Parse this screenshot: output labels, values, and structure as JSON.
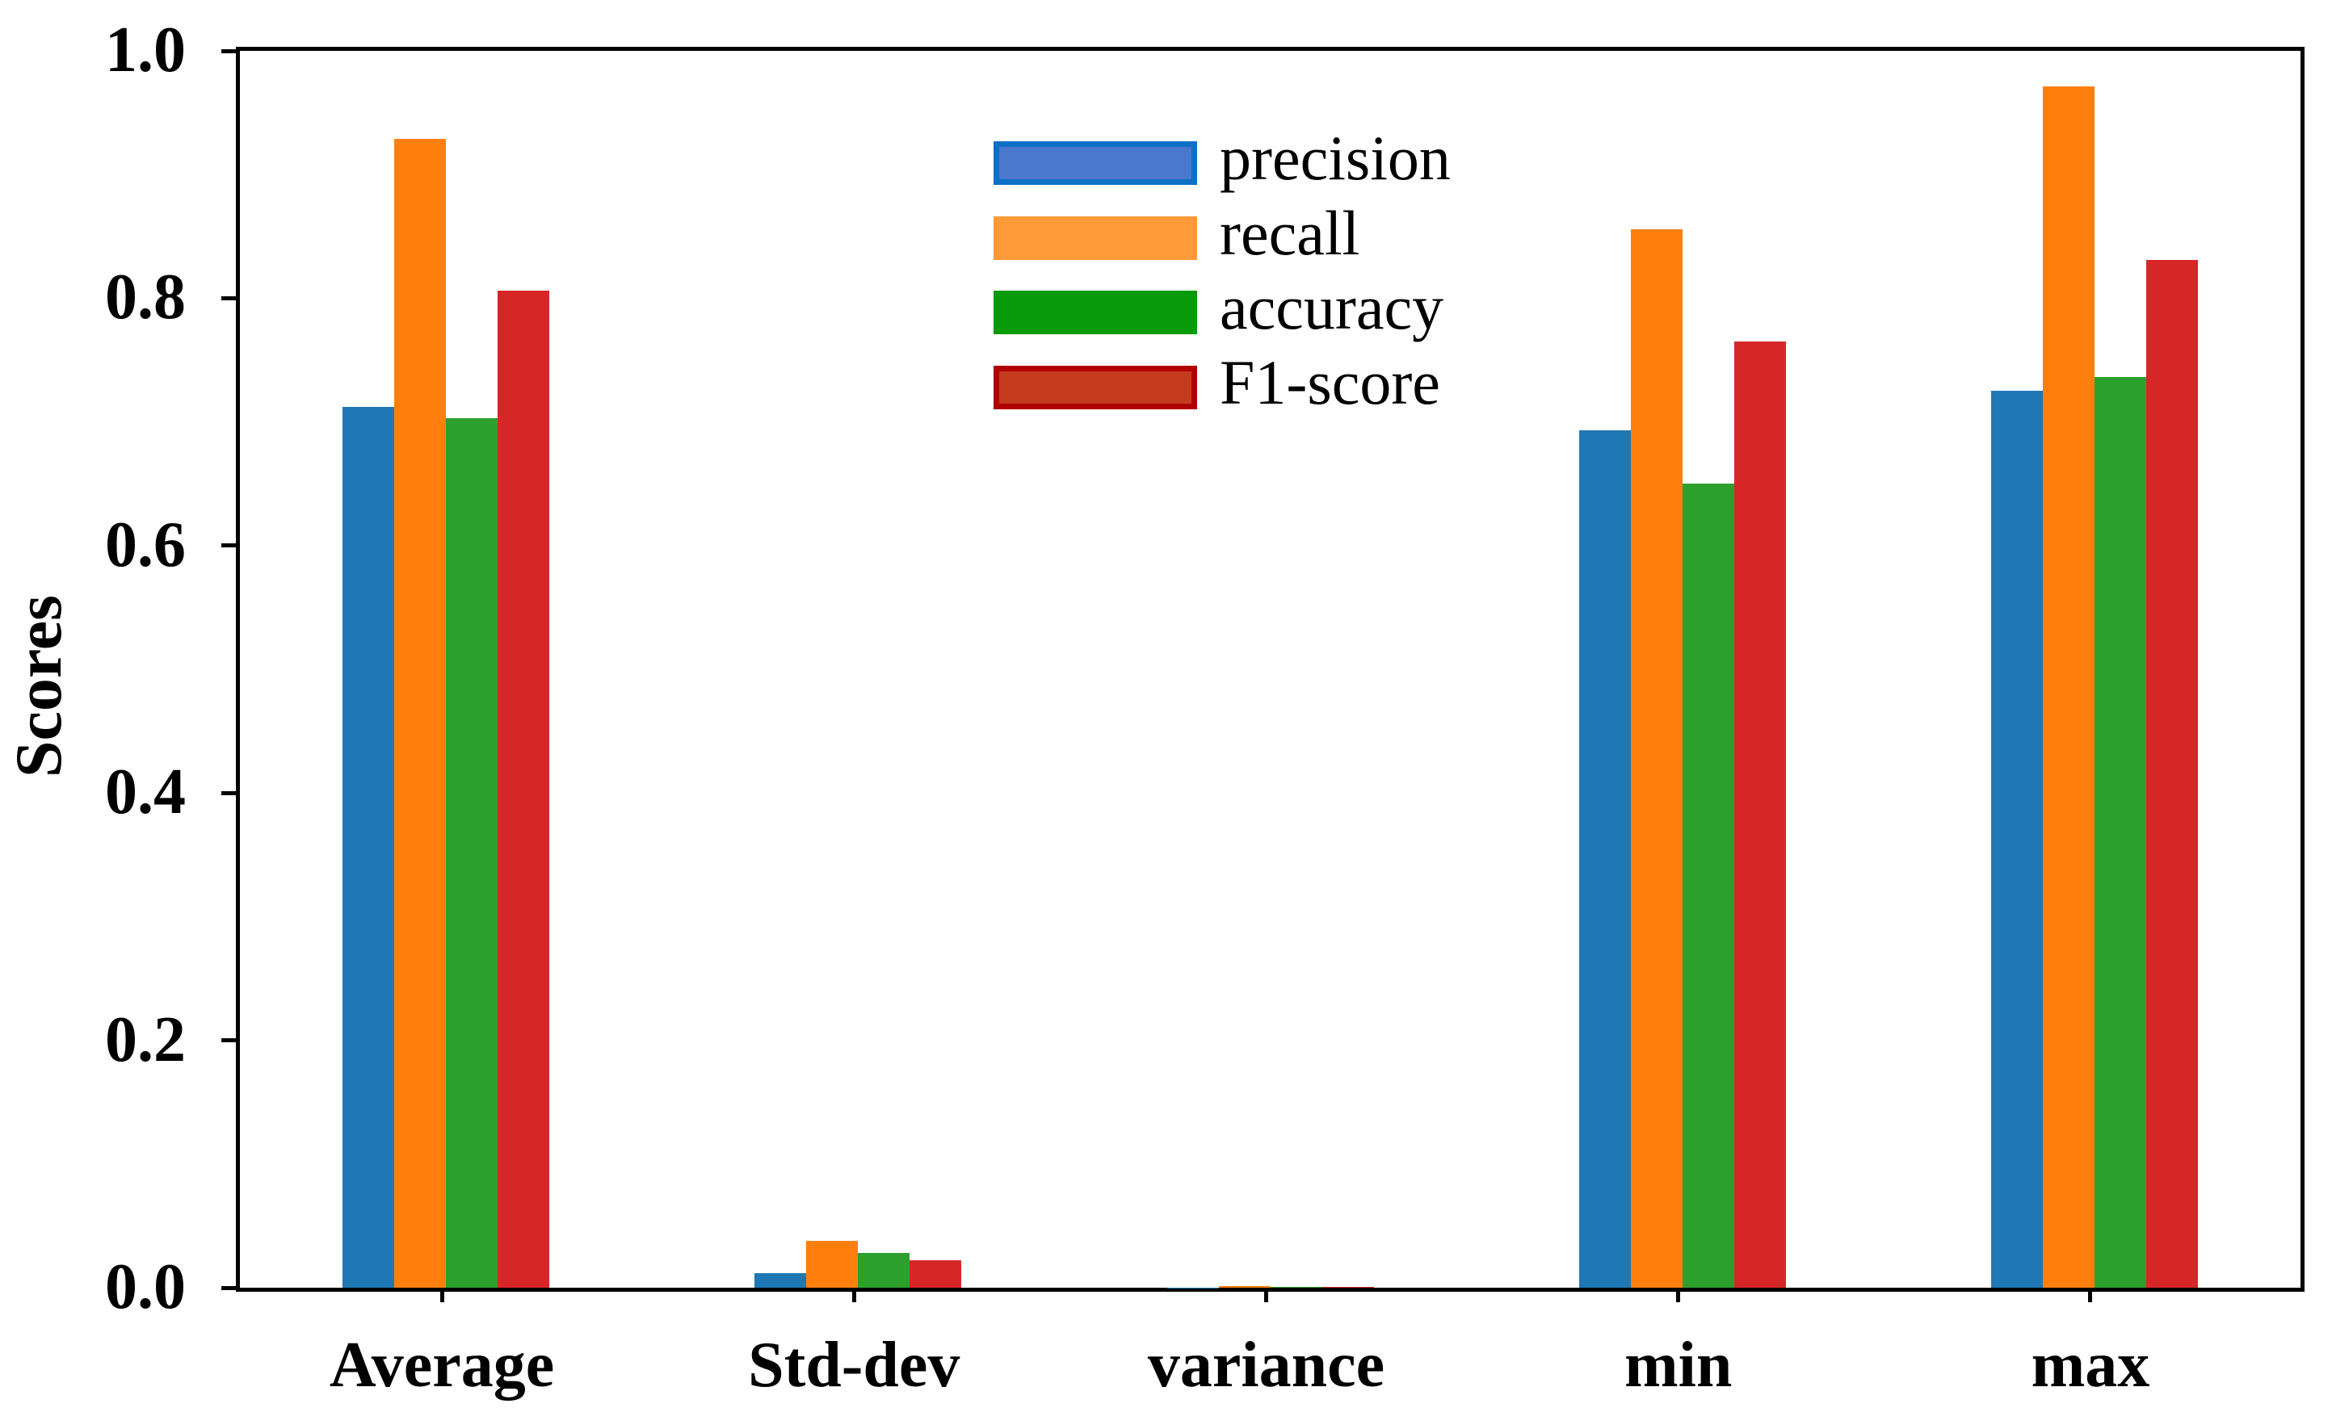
{
  "chart_data": {
    "type": "bar",
    "title": "",
    "ylabel": "Scores",
    "xlabel": "",
    "categories": [
      "Average",
      "Std-dev",
      "variance",
      "min",
      "max"
    ],
    "series": [
      {
        "name": "precision",
        "bar_color": "#1f77b4",
        "legend_fill": "#4a78cc",
        "legend_border": "#0c70c6",
        "values": [
          0.712,
          0.012,
          0.0002,
          0.693,
          0.725
        ]
      },
      {
        "name": "recall",
        "bar_color": "#ff7f0e",
        "legend_fill": "#ff9a38",
        "legend_border": "#ff9a38",
        "values": [
          0.929,
          0.038,
          0.0015,
          0.856,
          0.971
        ]
      },
      {
        "name": "accuracy",
        "bar_color": "#2ca02c",
        "legend_fill": "#089a08",
        "legend_border": "#089a08",
        "values": [
          0.703,
          0.028,
          0.0008,
          0.65,
          0.736
        ]
      },
      {
        "name": "F1-score",
        "bar_color": "#d62728",
        "legend_fill": "#c43b1e",
        "legend_border": "#b00000",
        "values": [
          0.806,
          0.022,
          0.0005,
          0.765,
          0.831
        ]
      }
    ],
    "ylim": [
      0.0,
      1.0
    ],
    "yticks": [
      "0.0",
      "0.2",
      "0.4",
      "0.6",
      "0.8",
      "1.0"
    ],
    "grid": false,
    "legend_position": "upper left inside plot",
    "axis_color": "#000000",
    "background_color": "#ffffff"
  }
}
